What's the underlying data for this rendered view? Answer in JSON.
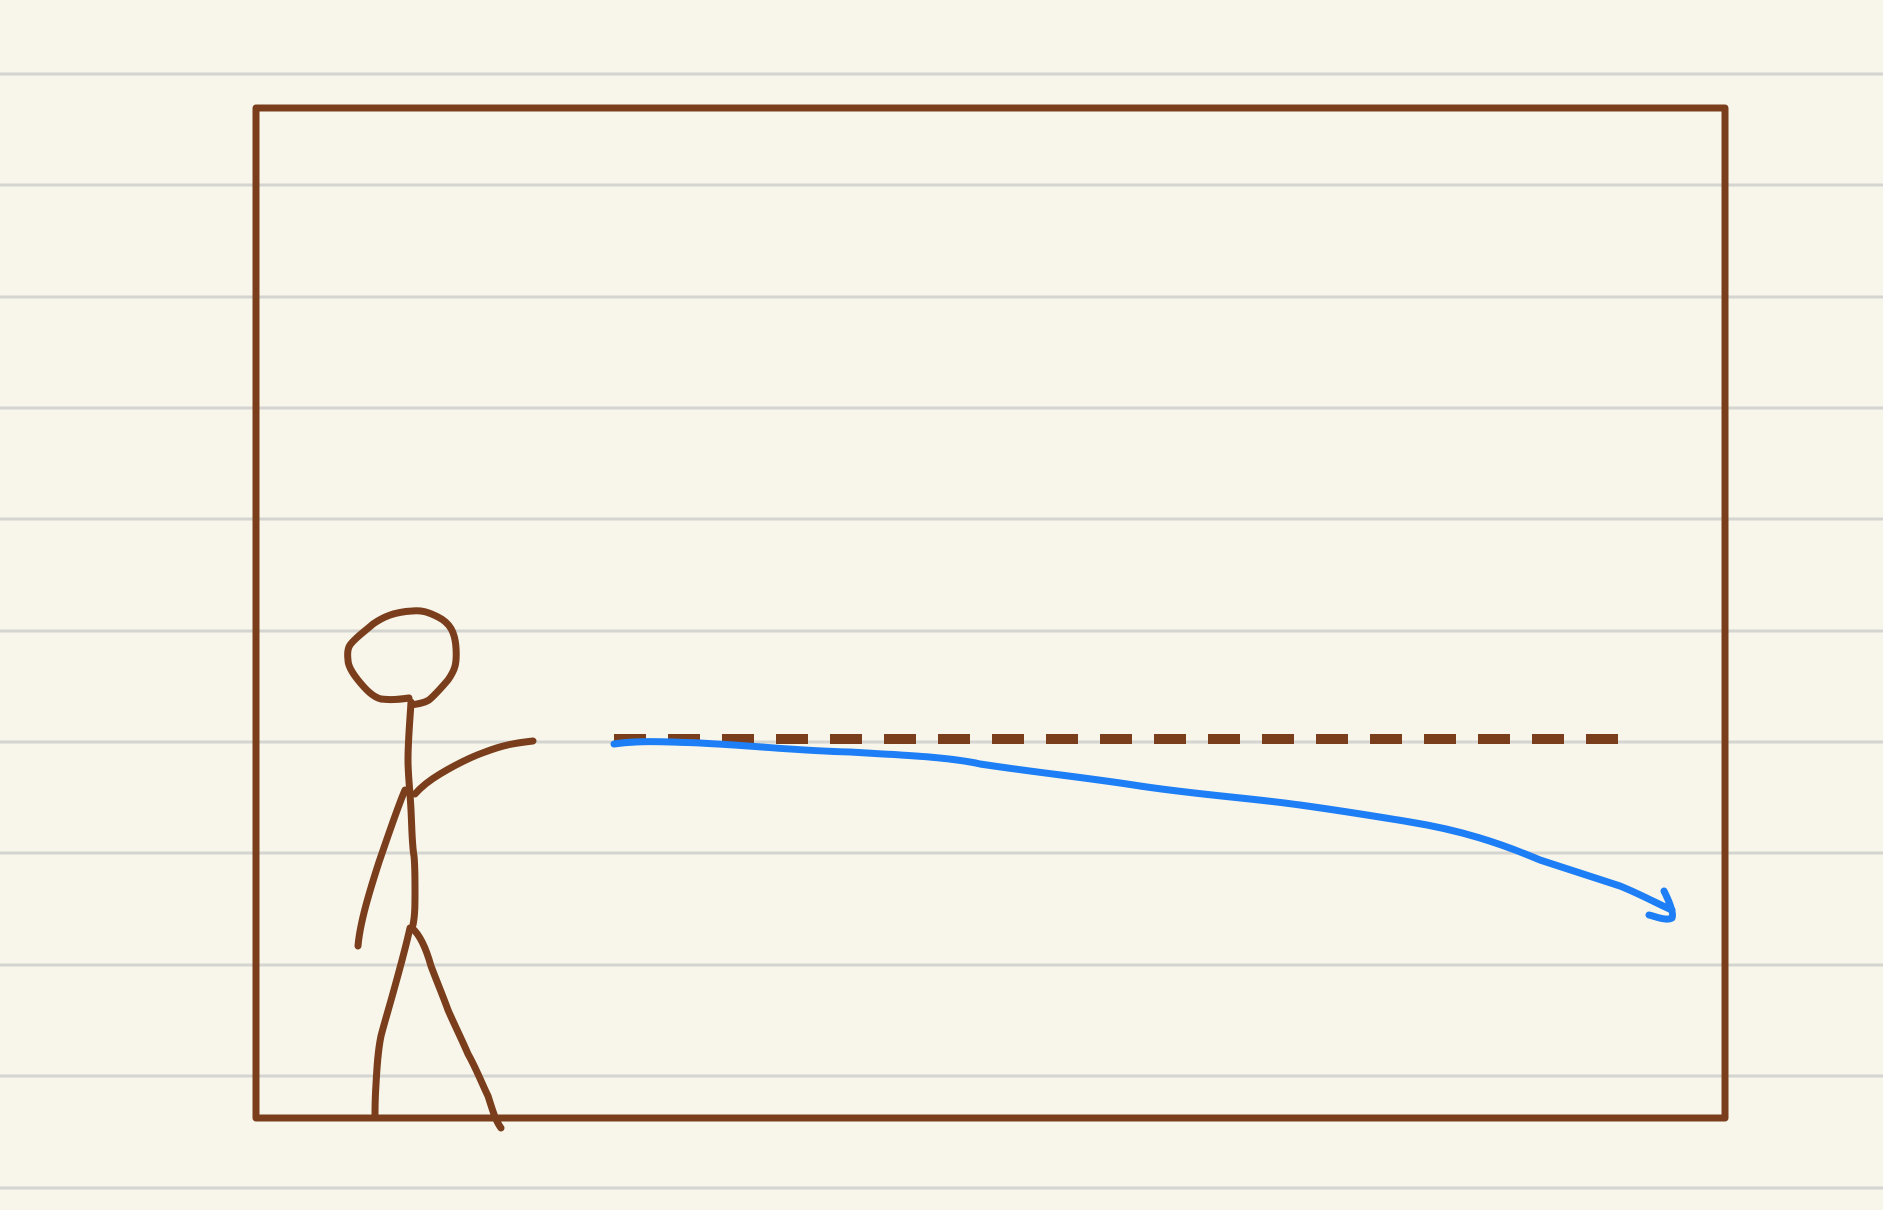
{
  "colors": {
    "paper": "#f8f6ea",
    "ruled_line": "#d4d4d0",
    "ink_brown": "#7a3e1c",
    "ink_blue": "#1e7ef5"
  },
  "drawing": {
    "frame": "rectangle-box",
    "figure": "stick-figure-with-outstretched-arm",
    "straight_path": "dashed-horizontal-line",
    "actual_path": "curving-arrow-downward"
  }
}
